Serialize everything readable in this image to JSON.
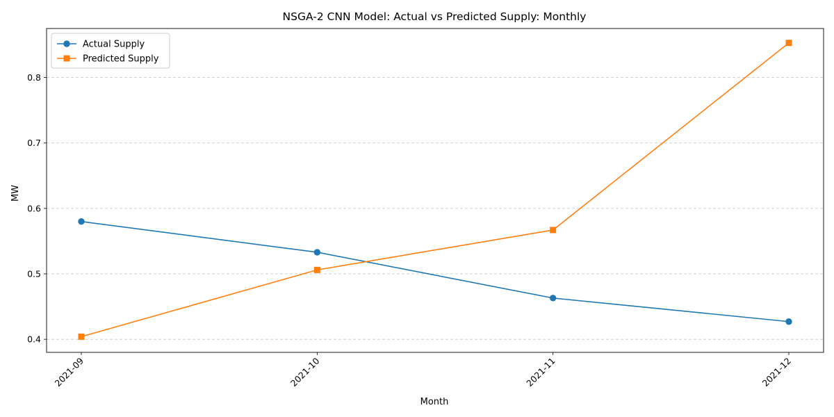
{
  "chart_data": {
    "type": "line",
    "title": "NSGA-2 CNN Model: Actual vs Predicted Supply: Monthly",
    "xlabel": "Month",
    "ylabel": "MW",
    "categories": [
      "2021-09",
      "2021-10",
      "2021-11",
      "2021-12"
    ],
    "yticks": [
      "0.4",
      "0.5",
      "0.6",
      "0.7",
      "0.8"
    ],
    "ylim": [
      0.38,
      0.875
    ],
    "grid": "y-dashed",
    "legend_position": "top-left",
    "series": [
      {
        "name": "Actual Supply",
        "marker": "circle",
        "color": "#1f77b4",
        "values": [
          0.58,
          0.533,
          0.463,
          0.427
        ]
      },
      {
        "name": "Predicted Supply",
        "marker": "square",
        "color": "#ff7f0e",
        "values": [
          0.404,
          0.506,
          0.567,
          0.853
        ]
      }
    ]
  }
}
